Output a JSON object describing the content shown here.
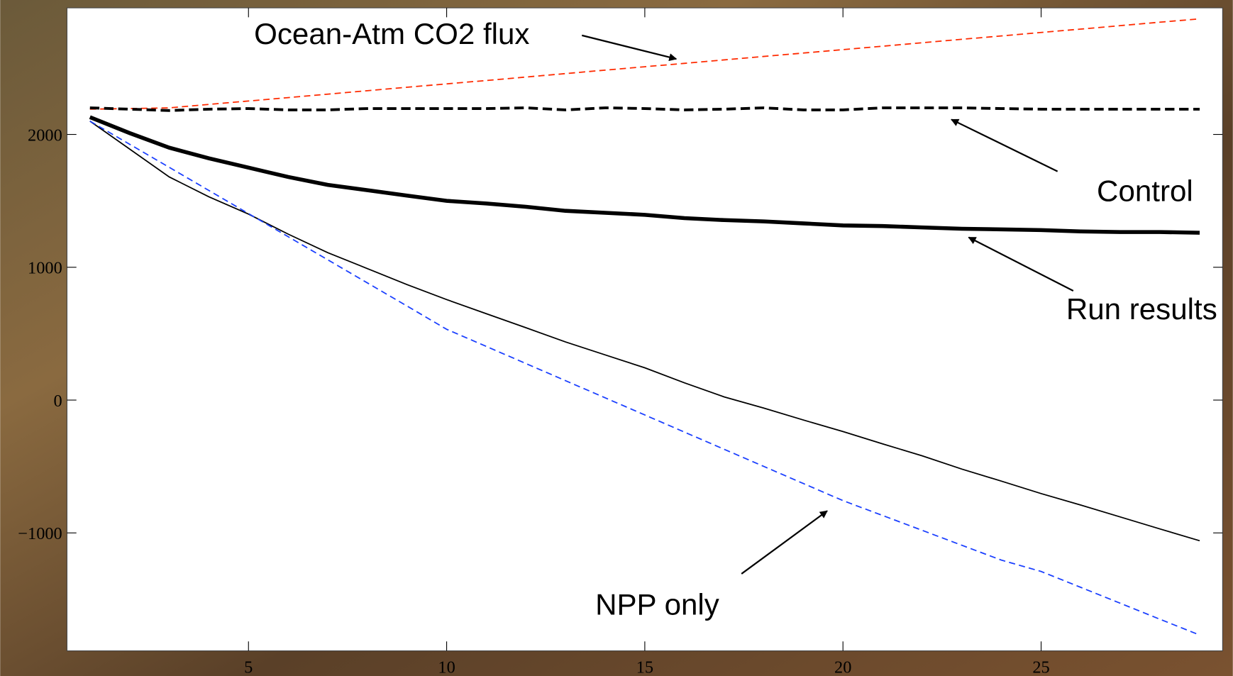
{
  "chart_data": {
    "type": "line",
    "annotations": [
      "Ocean-Atm CO2 flux",
      "Control",
      "Run results",
      "NPP only"
    ],
    "x": [
      1,
      2,
      3,
      4,
      5,
      6,
      7,
      8,
      9,
      10,
      11,
      12,
      13,
      14,
      15,
      16,
      17,
      18,
      19,
      20,
      21,
      22,
      23,
      24,
      25,
      26,
      27,
      28,
      29
    ],
    "series": [
      {
        "color": "#ff2a00",
        "style": "dashed",
        "values": [
          2190,
          2195,
          2200,
          2226,
          2252,
          2277,
          2303,
          2329,
          2355,
          2381,
          2406,
          2432,
          2458,
          2484,
          2510,
          2535,
          2561,
          2587,
          2613,
          2639,
          2664,
          2690,
          2716,
          2742,
          2768,
          2793,
          2819,
          2845,
          2870
        ]
      },
      {
        "color": "#000000",
        "style": "thick-dashed",
        "values": [
          2200,
          2190,
          2180,
          2190,
          2195,
          2185,
          2185,
          2195,
          2195,
          2195,
          2195,
          2200,
          2185,
          2200,
          2195,
          2185,
          2190,
          2200,
          2185,
          2185,
          2200,
          2200,
          2200,
          2195,
          2190,
          2190,
          2190,
          2190,
          2190
        ]
      },
      {
        "color": "#000000",
        "style": "thick",
        "values": [
          2130,
          2010,
          1900,
          1820,
          1750,
          1680,
          1620,
          1580,
          1540,
          1500,
          1480,
          1455,
          1425,
          1410,
          1395,
          1370,
          1355,
          1345,
          1330,
          1315,
          1310,
          1300,
          1290,
          1285,
          1280,
          1270,
          1265,
          1265,
          1260
        ]
      },
      {
        "color": "#000000",
        "style": "thin",
        "values": [
          2100,
          1890,
          1680,
          1530,
          1400,
          1250,
          1110,
          990,
          870,
          757,
          650,
          545,
          438,
          340,
          243,
          130,
          24,
          -60,
          -150,
          -237,
          -330,
          -420,
          -520,
          -610,
          -704,
          -790,
          -880,
          -970,
          -1059
        ]
      },
      {
        "color": "#1a3fff",
        "style": "dashed",
        "values": [
          2100,
          1926,
          1752,
          1578,
          1404,
          1230,
          1056,
          882,
          708,
          533,
          404,
          275,
          146,
          17,
          -112,
          -241,
          -370,
          -499,
          -628,
          -757,
          -869,
          -981,
          -1093,
          -1205,
          -1290,
          -1410,
          -1530,
          -1650,
          -1769
        ]
      }
    ],
    "xlim": [
      0.42,
      29.58
    ],
    "ylim": [
      -1888,
      2953
    ],
    "xticks": [
      5,
      10,
      15,
      20,
      25
    ],
    "yticks": [
      {
        "value": -1000,
        "label": "−1000"
      },
      0,
      1000,
      2000
    ]
  }
}
